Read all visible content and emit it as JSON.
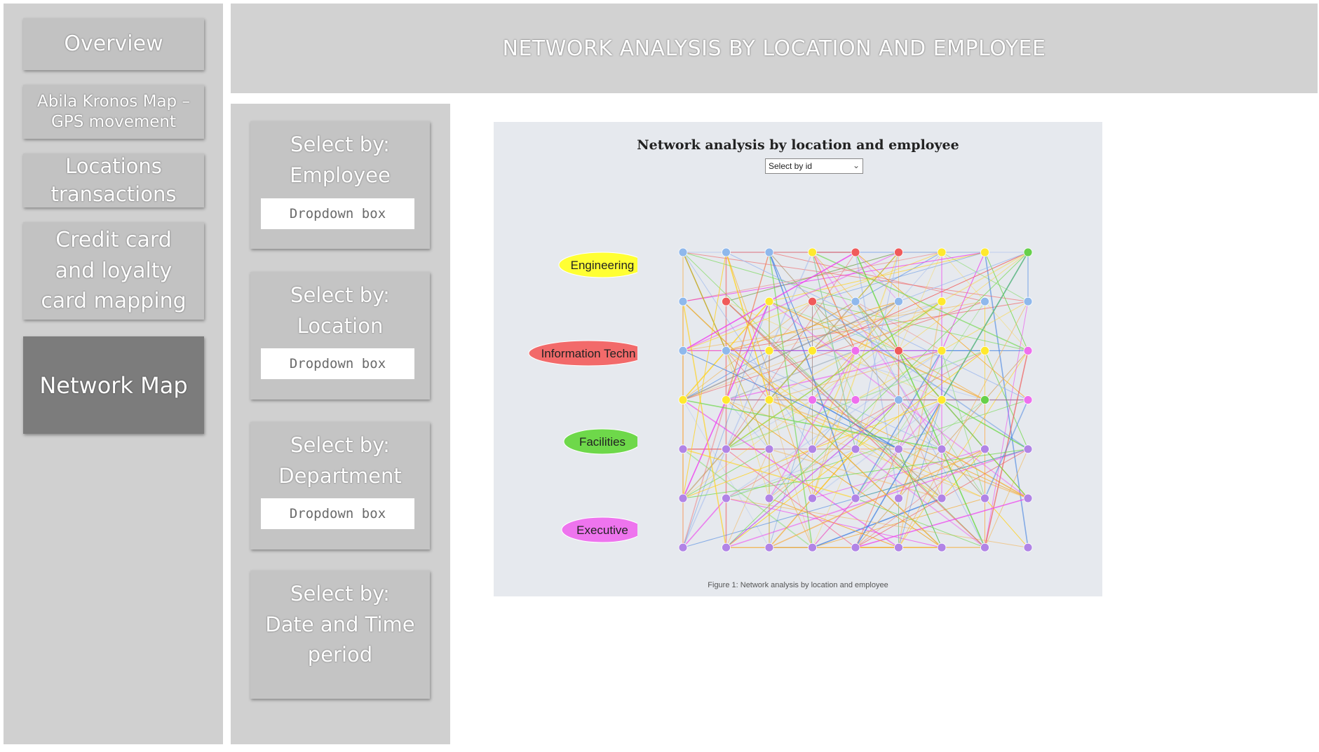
{
  "nav": {
    "items": [
      {
        "label": "Overview"
      },
      {
        "label": "Abila Kronos Map – GPS movement"
      },
      {
        "label": "Locations transactions"
      },
      {
        "label": "Credit card and loyalty card mapping"
      },
      {
        "label": "Network Map"
      }
    ],
    "active_index": 4
  },
  "header": {
    "title": "NETWORK ANALYSIS BY LOCATION AND EMPLOYEE"
  },
  "filters": [
    {
      "title": "Select by: Employee",
      "dropdown": "Dropdown box"
    },
    {
      "title": "Select by: Location",
      "dropdown": "Dropdown box"
    },
    {
      "title": "Select by: Department",
      "dropdown": "Dropdown box"
    },
    {
      "title": "Select by: Date and Time period",
      "dropdown": ""
    }
  ],
  "figure": {
    "title": "Network analysis by location and employee",
    "select_value": "Select by id",
    "caption": "Figure 1: Network analysis by location and employee",
    "legend": [
      {
        "label": "Engineering",
        "color": "#ffff33"
      },
      {
        "label": "Information Techn",
        "color": "#f26a6a"
      },
      {
        "label": "Facilities",
        "color": "#6ed84a"
      },
      {
        "label": "Executive",
        "color": "#ee74ee"
      }
    ],
    "node_colors": {
      "blue": "#8fb8ec",
      "red": "#f05a5a",
      "yellow": "#ffe92e",
      "green": "#66d04a",
      "magenta": "#ee6fee",
      "purple": "#b184e6"
    },
    "grid": [
      [
        "blue",
        "blue",
        "blue",
        "yellow",
        "red",
        "red",
        "yellow",
        "yellow",
        "green"
      ],
      [
        "blue",
        "red",
        "yellow",
        "red",
        "blue",
        "blue",
        "yellow",
        "blue",
        "blue"
      ],
      [
        "blue",
        "blue",
        "yellow",
        "yellow",
        "magenta",
        "red",
        "yellow",
        "yellow",
        "magenta"
      ],
      [
        "yellow",
        "yellow",
        "yellow",
        "magenta",
        "magenta",
        "blue",
        "yellow",
        "green",
        "magenta"
      ],
      [
        "purple",
        "purple",
        "purple",
        "purple",
        "purple",
        "purple",
        "purple",
        "purple",
        "purple"
      ],
      [
        "purple",
        "purple",
        "purple",
        "purple",
        "purple",
        "purple",
        "purple",
        "purple",
        "purple"
      ],
      [
        "purple",
        "purple",
        "purple",
        "purple",
        "purple",
        "purple",
        "purple",
        "purple",
        "purple"
      ]
    ]
  }
}
